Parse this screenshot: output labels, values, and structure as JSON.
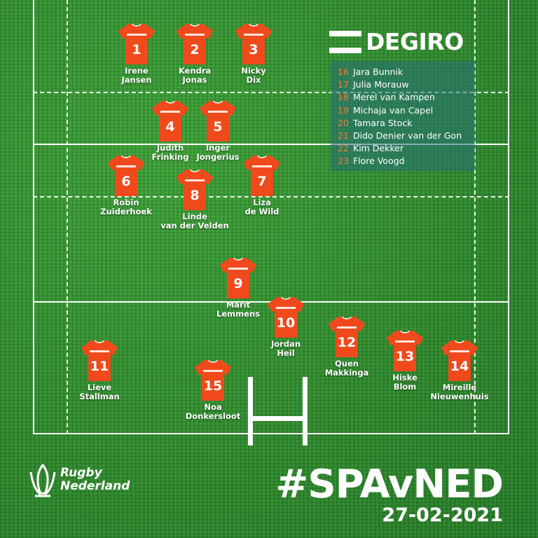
{
  "sponsor": {
    "name": "DEGIRO"
  },
  "players": [
    {
      "number": "1",
      "first": "Irene",
      "last": "Jansen"
    },
    {
      "number": "2",
      "first": "Kendra",
      "last": "Jonas"
    },
    {
      "number": "3",
      "first": "Nicky",
      "last": "Dix"
    },
    {
      "number": "4",
      "first": "Judith",
      "last": "Frinking"
    },
    {
      "number": "5",
      "first": "Inger",
      "last": "Jongerius"
    },
    {
      "number": "6",
      "first": "Robin",
      "last": "Zuiderhoek"
    },
    {
      "number": "7",
      "first": "Liza",
      "last": "de Wild"
    },
    {
      "number": "8",
      "first": "Linde",
      "last": "van der Velden"
    },
    {
      "number": "9",
      "first": "Marit",
      "last": "Lemmens"
    },
    {
      "number": "10",
      "first": "Jordan",
      "last": "Heil"
    },
    {
      "number": "11",
      "first": "Lieve",
      "last": "Stallman"
    },
    {
      "number": "12",
      "first": "Quen",
      "last": "Makkinga"
    },
    {
      "number": "13",
      "first": "Hiske",
      "last": "Blom"
    },
    {
      "number": "14",
      "first": "Mireille",
      "last": "Nieuwenhuis"
    },
    {
      "number": "15",
      "first": "Noa",
      "last": "Donkersloot"
    }
  ],
  "bench": [
    {
      "number": "16",
      "name": "Jara Bunnik"
    },
    {
      "number": "17",
      "name": "Julia Morauw"
    },
    {
      "number": "18",
      "name": "Merel van Kampen"
    },
    {
      "number": "19",
      "name": "Michaja van Capel"
    },
    {
      "number": "20",
      "name": "Tamara Stock"
    },
    {
      "number": "21",
      "name": "Dido Denier van der Gon"
    },
    {
      "number": "22",
      "name": "Kim Dekker"
    },
    {
      "number": "23",
      "name": "Flore Voogd"
    }
  ],
  "logo": {
    "line1": "Rugby",
    "line2": "Nederland"
  },
  "hashtag": "#SPAvNED",
  "date": "27-02-2021",
  "colors": {
    "jersey": "#f04a1c",
    "bench_number": "#ff7a30",
    "pitch": "#2f8f2c"
  }
}
